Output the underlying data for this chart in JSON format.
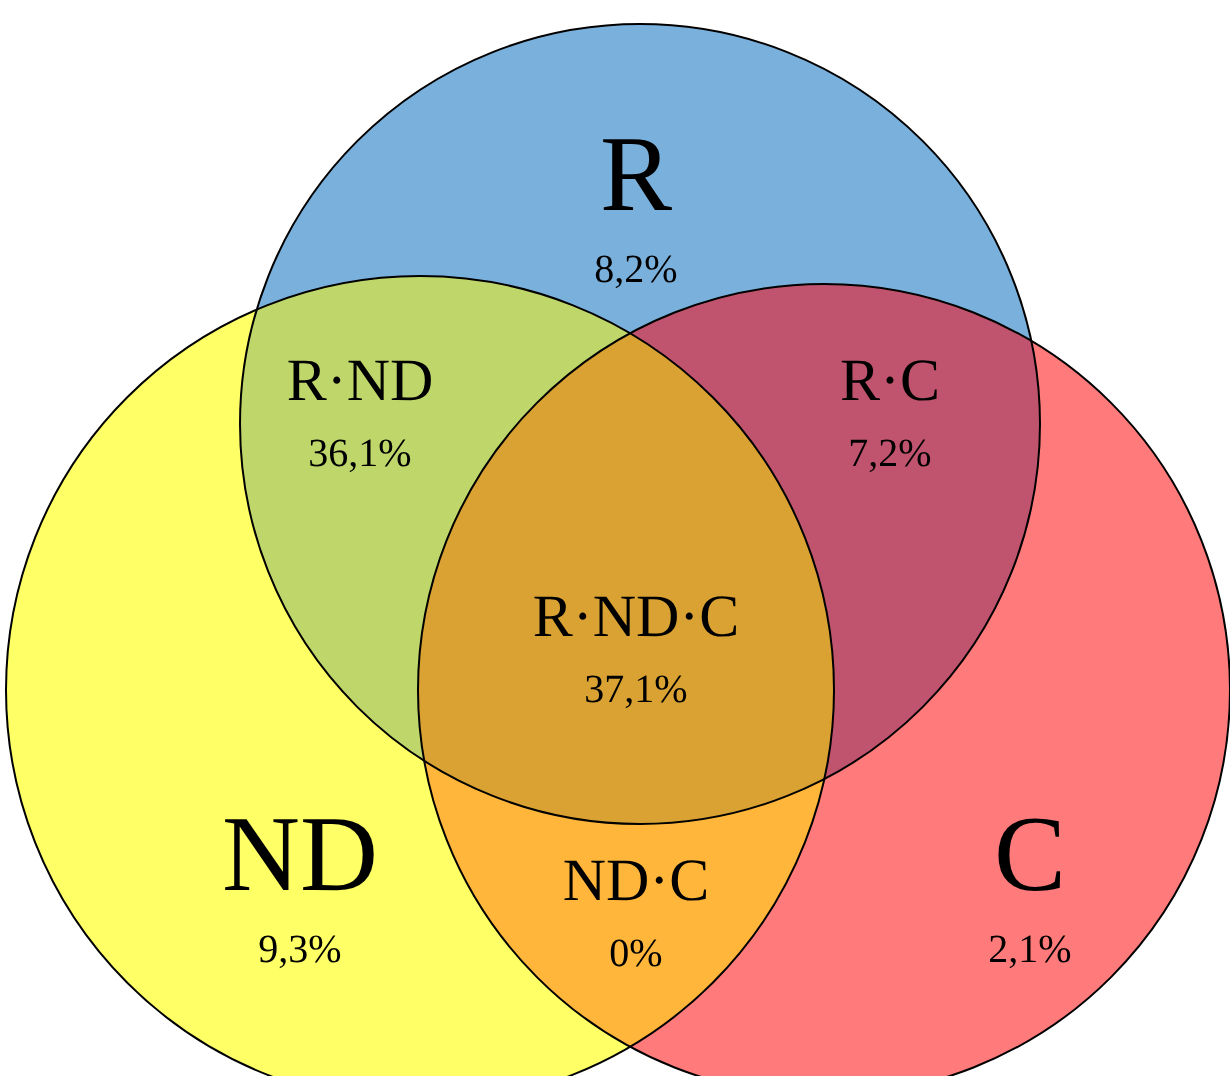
{
  "chart_data": {
    "type": "other",
    "categories": [
      "R",
      "ND",
      "C",
      "R·ND",
      "R·C",
      "ND·C",
      "R·ND·C"
    ],
    "values": [
      8.2,
      9.3,
      2.1,
      36.1,
      7.2,
      0,
      37.1
    ],
    "value_labels": [
      "8,2%",
      "9,3%",
      "2,1%",
      "36,1%",
      "7,2%",
      "0%",
      "37,1%"
    ],
    "colors": [
      "#7ab0dc",
      "#ffff66",
      "#ff7b7b",
      "#bfd76a",
      "#c0546e",
      "#ffb63a",
      "#d9a233"
    ]
  }
}
